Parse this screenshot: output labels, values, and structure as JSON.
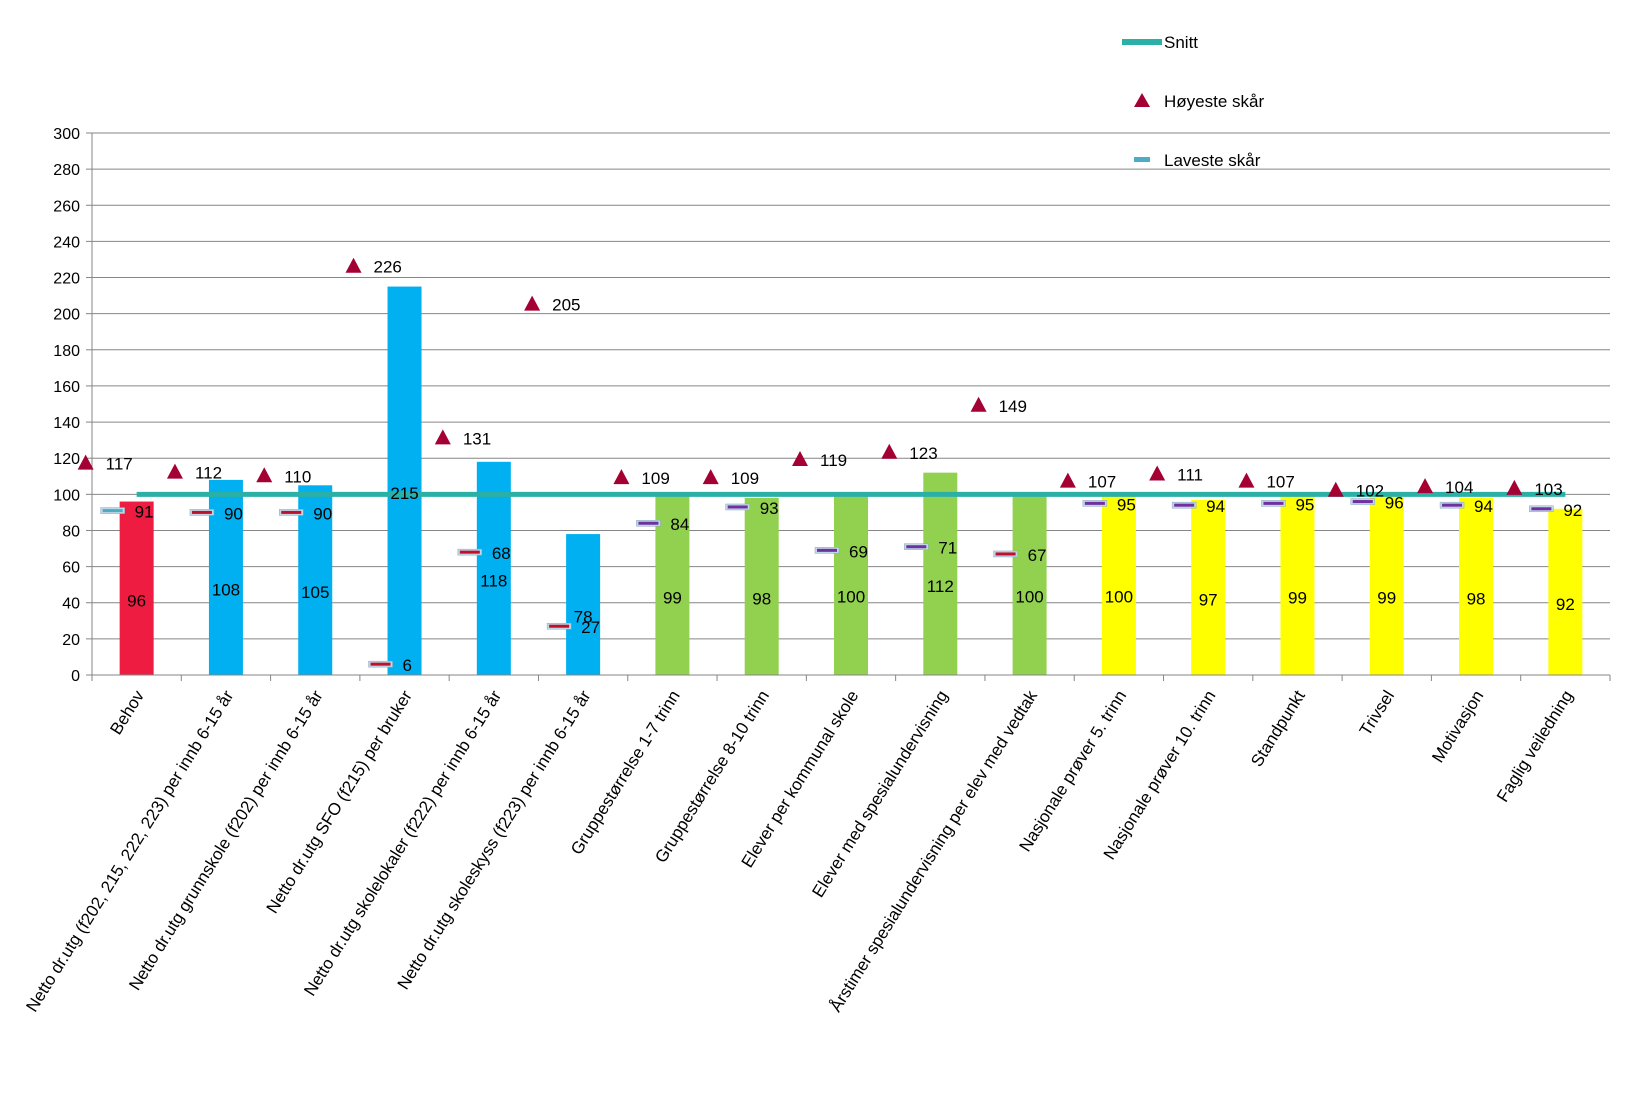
{
  "chart_data": {
    "type": "bar",
    "ylim": [
      0,
      300
    ],
    "ytick_step": 20,
    "grid": true,
    "legend_position": "top-right",
    "categories": [
      "Behov",
      "Netto dr.utg (f202, 215, 222, 223) per innb 6-15 år",
      "Netto dr.utg grunnskole (f202) per innb 6-15 år",
      "Netto dr.utg SFO (f215) per bruker",
      "Netto dr.utg skolelokaler (f222) per innb 6-15 år",
      "Netto dr.utg skoleskyss (f223) per innb 6-15 år",
      "Gruppestørrelse 1-7 trinn",
      "Gruppestørrelse 8-10 trinn",
      "Elever per kommunal skole",
      "Elever med spesialundervisning",
      "Årstimer spesialundervisning per elev med vedtak",
      "Nasjonale prøver 5. trinn",
      "Nasjonale prøver 10. trinn",
      "Standpunkt",
      "Trivsel",
      "Motivasjon",
      "Faglig veiledning"
    ],
    "values": [
      96,
      108,
      105,
      215,
      118,
      78,
      99,
      98,
      100,
      112,
      100,
      100,
      97,
      99,
      99,
      98,
      92
    ],
    "bar_colors": [
      "#EE1C40",
      "#00B0F0",
      "#00B0F0",
      "#00B0F0",
      "#00B0F0",
      "#00B0F0",
      "#92D050",
      "#92D050",
      "#92D050",
      "#92D050",
      "#92D050",
      "#FFFF00",
      "#FFFF00",
      "#FFFF00",
      "#FFFF00",
      "#FFFF00",
      "#FFFF00"
    ],
    "series": [
      {
        "name": "Snitt",
        "values": [
          100,
          100,
          100,
          100,
          100,
          100,
          100,
          100,
          100,
          100,
          100,
          100,
          100,
          100,
          100,
          100,
          100
        ],
        "color": "#2AB0A6"
      },
      {
        "name": "Høyeste skår",
        "values": [
          117,
          112,
          110,
          226,
          131,
          205,
          109,
          109,
          119,
          123,
          149,
          107,
          111,
          107,
          102,
          104,
          103
        ],
        "color": "#A50034"
      },
      {
        "name": "Laveste skår",
        "values": [
          91,
          90,
          90,
          6,
          68,
          27,
          84,
          93,
          69,
          71,
          67,
          95,
          94,
          95,
          96,
          94,
          92
        ],
        "color": "#4BACC6"
      }
    ],
    "low_marker_colors": [
      "#4BACC6",
      "#C0102A",
      "#C0102A",
      "#C0102A",
      "#C0102A",
      "#C0102A",
      "#7030A0",
      "#7030A0",
      "#7030A0",
      "#7030A0",
      "#C0102A",
      "#7030A0",
      "#7030A0",
      "#7030A0",
      "#7030A0",
      "#7030A0",
      "#7030A0"
    ]
  }
}
